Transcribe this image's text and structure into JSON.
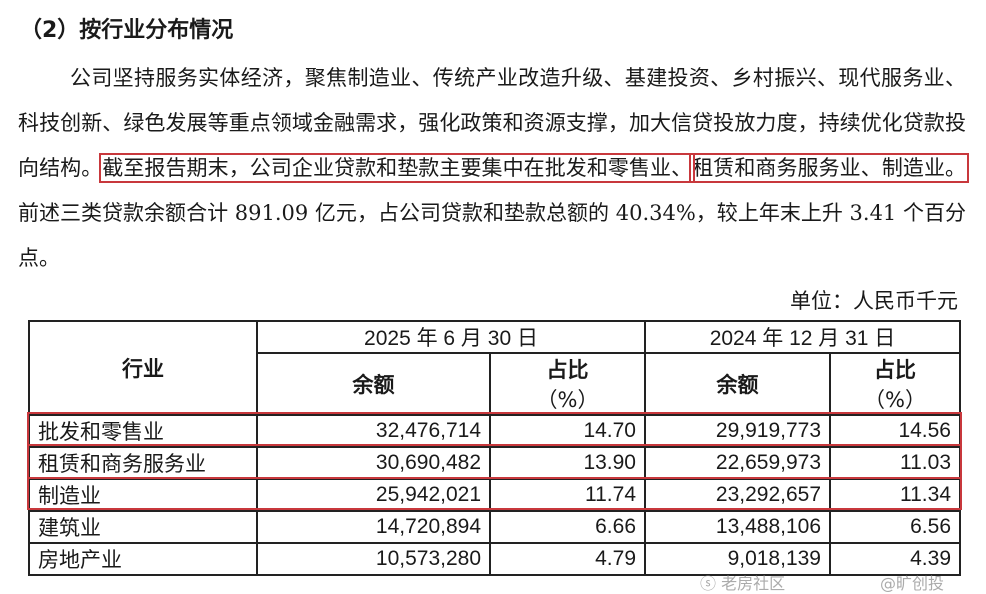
{
  "section_title": "（2）按行业分布情况",
  "paragraph": {
    "part1": "公司坚持服务实体经济，聚焦制造业、传统产业改造升级、基建投资、乡村振兴、现代服务业、科技创新、绿色发展等重点领域金融需求，强化政策和资源支撑，加大信贷投放力度，持续优化贷款投向结构。",
    "highlight1": "截至报告期末，公司企业贷款和垫款主要集中在批发和零售业、",
    "highlight2": "租赁和商务服务业、制造业。",
    "part2": "前述三类贷款余额合计 891.09 亿元，占公司贷款和垫款总额的 40.34%，较上年末上升 3.41 个百分点。"
  },
  "unit": "单位：人民币千元",
  "table": {
    "header_industry": "行业",
    "periods": [
      "2025 年 6 月 30 日",
      "2024 年 12 月 31 日"
    ],
    "col_balance": "余额",
    "col_ratio_line1": "占比",
    "col_ratio_line2": "（%）",
    "rows": [
      {
        "industry": "批发和零售业",
        "bal_2025": "32,476,714",
        "ratio_2025": "14.70",
        "bal_2024": "29,919,773",
        "ratio_2024": "14.56"
      },
      {
        "industry": "租赁和商务服务业",
        "bal_2025": "30,690,482",
        "ratio_2025": "13.90",
        "bal_2024": "22,659,973",
        "ratio_2024": "11.03"
      },
      {
        "industry": "制造业",
        "bal_2025": "25,942,021",
        "ratio_2025": "11.74",
        "bal_2024": "23,292,657",
        "ratio_2024": "11.34"
      },
      {
        "industry": "建筑业",
        "bal_2025": "14,720,894",
        "ratio_2025": "6.66",
        "bal_2024": "13,488,106",
        "ratio_2024": "6.56"
      },
      {
        "industry": "房地产业",
        "bal_2025": "10,573,280",
        "ratio_2025": "4.79",
        "bal_2024": "9,018,139",
        "ratio_2024": "4.39"
      }
    ]
  },
  "highlight_color": "#c8383c",
  "watermark": {
    "line1": "老房社区",
    "line2": "@旷创投"
  }
}
